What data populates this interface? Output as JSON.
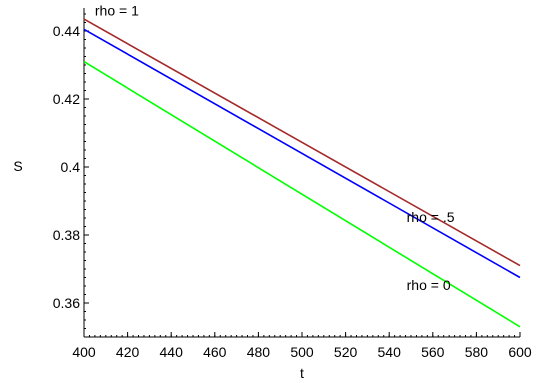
{
  "chart_data": {
    "type": "line",
    "xlabel": "t",
    "ylabel": "S",
    "xlim": [
      400,
      600
    ],
    "ylim": [
      0.35,
      0.445
    ],
    "grid": false,
    "legend": "none",
    "x_ticks": [
      400,
      420,
      440,
      460,
      480,
      500,
      520,
      540,
      560,
      580,
      600
    ],
    "x_tick_labels": [
      "400",
      "420",
      "440",
      "460",
      "480",
      "500",
      "520",
      "540",
      "560",
      "580",
      "600"
    ],
    "y_ticks": [
      0.36,
      0.38,
      0.4,
      0.42,
      0.44
    ],
    "y_tick_labels": [
      "0.36",
      "0.38",
      "0.4",
      "0.42",
      "0.44"
    ],
    "series": [
      {
        "color": "#a52a2a",
        "x": [
          400,
          600
        ],
        "values": [
          0.4435,
          0.371
        ]
      },
      {
        "color": "#0000ff",
        "x": [
          400,
          600
        ],
        "values": [
          0.4405,
          0.3675
        ]
      },
      {
        "color": "#00ff00",
        "x": [
          400,
          600
        ],
        "values": [
          0.431,
          0.353
        ]
      }
    ],
    "annotations": [
      {
        "text": "rho = 1",
        "x": 405,
        "y": 0.4445
      },
      {
        "text": "rho = .5",
        "x": 548,
        "y": 0.3838
      },
      {
        "text": "rho = 0",
        "x": 548,
        "y": 0.3638
      }
    ]
  }
}
